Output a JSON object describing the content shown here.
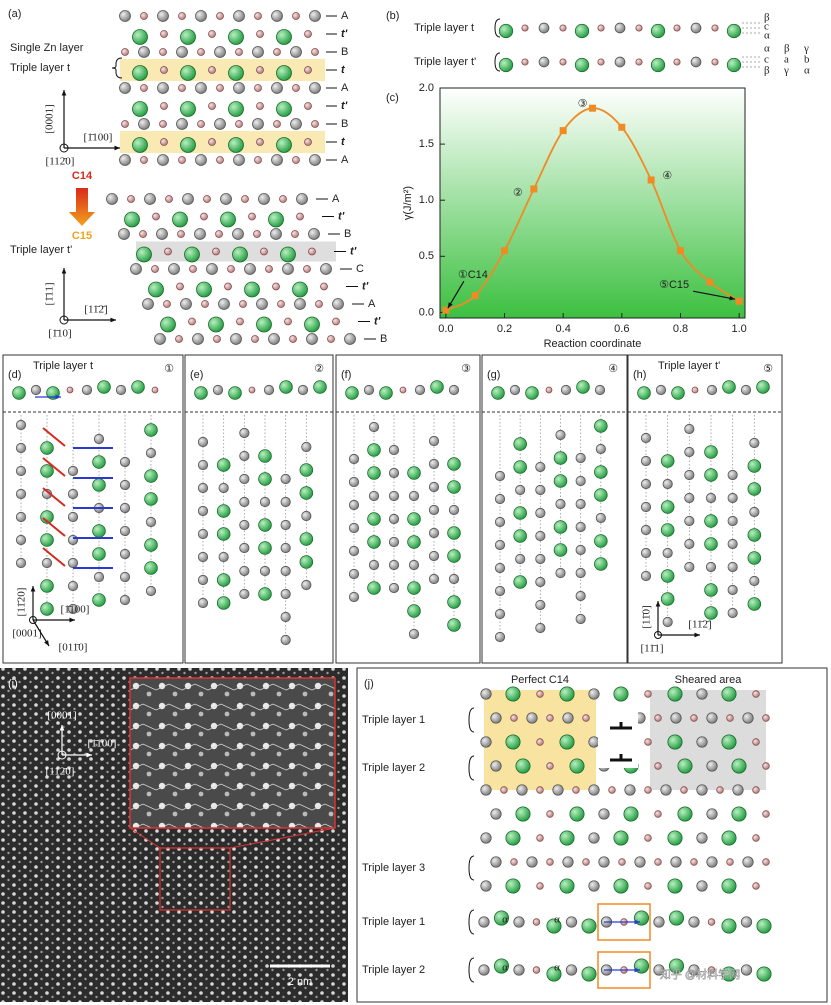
{
  "panel_a": {
    "label": "(a)",
    "stack1_labels": [
      "A",
      "t'",
      "B",
      "t",
      "A",
      "t'",
      "B",
      "t",
      "A"
    ],
    "left_labels": [
      "Single Zn layer",
      "Triple layer t"
    ],
    "axes1": [
      "[0001]",
      "[1̄100]",
      "[112̄0]"
    ],
    "transition": [
      "C14",
      "C15"
    ],
    "stack2_note": "Triple layer t'",
    "stack2_labels": [
      "A",
      "t'",
      "B",
      "t'",
      "C",
      "t'",
      "A",
      "t'",
      "B"
    ],
    "axes2": [
      "[1̄11]",
      "[11̄2̄]",
      "[1̄10]"
    ]
  },
  "panel_b": {
    "label": "(b)",
    "rows": [
      "Triple layer t",
      "Triple layer t'"
    ],
    "greek1": [
      "β",
      "c",
      "α"
    ],
    "greek2": [
      [
        "α",
        "β",
        "γ"
      ],
      [
        "c",
        "a",
        "b"
      ],
      [
        "β",
        "γ",
        "α"
      ]
    ]
  },
  "chart_data": {
    "type": "line",
    "label": "(c)",
    "x_label": "Reaction coordinate",
    "y_label": "γ(J/m²)",
    "x": [
      0,
      0.1,
      0.2,
      0.3,
      0.4,
      0.5,
      0.6,
      0.7,
      0.8,
      0.9,
      1.0
    ],
    "values": [
      0.02,
      0.15,
      0.55,
      1.1,
      1.62,
      1.82,
      1.65,
      1.18,
      0.55,
      0.27,
      0.1
    ],
    "point_labels": [
      "①C14",
      null,
      null,
      "②",
      null,
      "③",
      null,
      "④",
      null,
      null,
      "⑤C15"
    ],
    "color": "#f08a24",
    "xlim": [
      -0.02,
      1.02
    ],
    "ylim": [
      -0.05,
      2.0
    ],
    "xticks": [
      {
        "value": 0,
        "label": "0.0"
      },
      0.2,
      0.4,
      0.6,
      0.8,
      {
        "value": 1,
        "label": "1.0"
      }
    ],
    "yticks": [
      {
        "value": 0,
        "label": "0.0"
      },
      0.5,
      {
        "value": 1,
        "label": "1.0"
      },
      1.5,
      {
        "value": 2,
        "label": "2.0"
      }
    ]
  },
  "panels_dh": [
    {
      "label": "(d)",
      "title": "Triple layer t",
      "step": "①",
      "axes": [
        "[11̄20]",
        "[1̄100]",
        "[0001]",
        "[011̄0]"
      ]
    },
    {
      "label": "(e)",
      "step": "②"
    },
    {
      "label": "(f)",
      "step": "③"
    },
    {
      "label": "(g)",
      "step": "④"
    },
    {
      "label": "(h)",
      "title": "Triple layer t'",
      "step": "⑤",
      "axes": [
        "[11̄0]",
        "[11̄2̄]",
        "[11̄1]"
      ]
    }
  ],
  "panel_i": {
    "label": "(i)",
    "axes": [
      "[0001]",
      "[1̄100]",
      "[112̄0]"
    ],
    "scale": "2 nm"
  },
  "panel_j": {
    "label": "(j)",
    "headers": [
      "Perfect C14",
      "Sheared area"
    ],
    "layers": [
      "Triple layer 1",
      "Triple layer 2",
      "Triple layer 3",
      "Triple layer 1",
      "Triple layer 2"
    ],
    "alpha_marks": [
      "α",
      "α",
      "α",
      "α"
    ]
  },
  "watermark": "知乎 @材料学网"
}
